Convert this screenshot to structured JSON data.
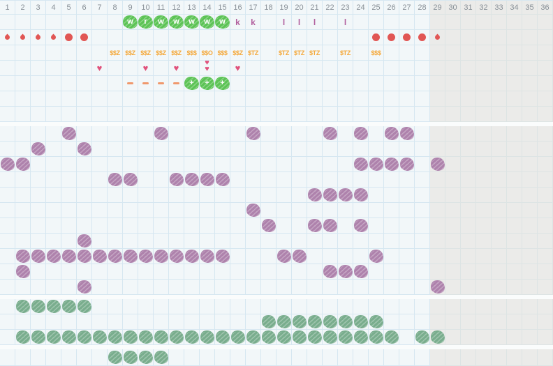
{
  "palette": {
    "bg_light": "#f2f7f9",
    "bg_dark": "#ebebe9",
    "grid_line": "#d6e7f1",
    "divider": "#fafcfc",
    "header_text": "#878f96",
    "badge_green": "#5cc355",
    "letter_mauve": "#b2609e",
    "money_orange": "#f4a93c",
    "drop_red": "#e15654",
    "heart_pink": "#e0517b",
    "dash_salmon": "#f0986c",
    "blob_purple": "#ae82ac",
    "blob_green": "#79ad8d"
  },
  "grid": {
    "columns": [
      "1",
      "2",
      "3",
      "4",
      "5",
      "6",
      "7",
      "8",
      "9",
      "10",
      "11",
      "12",
      "13",
      "14",
      "15",
      "16",
      "17",
      "18",
      "19",
      "20",
      "21",
      "22",
      "23",
      "24",
      "25",
      "26",
      "27",
      "28",
      "29",
      "30",
      "31",
      "32",
      "33",
      "34",
      "35",
      "36"
    ],
    "dark_from_column": 29
  },
  "sections": [
    {
      "name": "daily-symbols",
      "rows": [
        {
          "name": "badge-row",
          "items": [
            {
              "col": 9,
              "kind": "badge",
              "text": "w"
            },
            {
              "col": 10,
              "kind": "badge",
              "text": "r"
            },
            {
              "col": 11,
              "kind": "badge",
              "text": "w"
            },
            {
              "col": 12,
              "kind": "badge",
              "text": "w"
            },
            {
              "col": 13,
              "kind": "badge",
              "text": "w"
            },
            {
              "col": 14,
              "kind": "badge",
              "text": "w"
            },
            {
              "col": 15,
              "kind": "badge",
              "text": "w"
            },
            {
              "col": 16,
              "kind": "letter",
              "text": "k"
            },
            {
              "col": 17,
              "kind": "letter",
              "text": "k"
            },
            {
              "col": 19,
              "kind": "letter",
              "text": "l"
            },
            {
              "col": 20,
              "kind": "letter",
              "text": "l"
            },
            {
              "col": 21,
              "kind": "letter",
              "text": "l"
            },
            {
              "col": 23,
              "kind": "letter",
              "text": "l"
            }
          ]
        },
        {
          "name": "drop-row",
          "items": [
            {
              "col": 1,
              "kind": "drop"
            },
            {
              "col": 2,
              "kind": "drop"
            },
            {
              "col": 3,
              "kind": "drop"
            },
            {
              "col": 4,
              "kind": "drop"
            },
            {
              "col": 5,
              "kind": "dot"
            },
            {
              "col": 6,
              "kind": "dot"
            },
            {
              "col": 25,
              "kind": "dot"
            },
            {
              "col": 26,
              "kind": "dot"
            },
            {
              "col": 27,
              "kind": "dot"
            },
            {
              "col": 28,
              "kind": "dot"
            },
            {
              "col": 29,
              "kind": "drop"
            }
          ]
        },
        {
          "name": "money-row",
          "kind": "money",
          "items": [
            {
              "col": 8,
              "text": "$$Z"
            },
            {
              "col": 9,
              "text": "$$Z"
            },
            {
              "col": 10,
              "text": "$$Z"
            },
            {
              "col": 11,
              "text": "$$Z"
            },
            {
              "col": 12,
              "text": "$$Z"
            },
            {
              "col": 13,
              "text": "$$$"
            },
            {
              "col": 14,
              "text": "$$O"
            },
            {
              "col": 15,
              "text": "$$$"
            },
            {
              "col": 16,
              "text": "$$Z"
            },
            {
              "col": 17,
              "text": "$TZ"
            },
            {
              "col": 19,
              "text": "$TZ"
            },
            {
              "col": 20,
              "text": "$TZ"
            },
            {
              "col": 21,
              "text": "$TZ"
            },
            {
              "col": 23,
              "text": "$TZ"
            },
            {
              "col": 25,
              "text": "$$$"
            }
          ]
        },
        {
          "name": "heart-row",
          "items": [
            {
              "col": 7,
              "kind": "heart"
            },
            {
              "col": 10,
              "kind": "heart"
            },
            {
              "col": 12,
              "kind": "heart"
            },
            {
              "col": 14,
              "kind": "heart-double"
            },
            {
              "col": 16,
              "kind": "heart"
            }
          ]
        },
        {
          "name": "mark-row",
          "items": [
            {
              "col": 9,
              "kind": "dash"
            },
            {
              "col": 10,
              "kind": "dash"
            },
            {
              "col": 11,
              "kind": "dash"
            },
            {
              "col": 12,
              "kind": "dash"
            },
            {
              "col": 13,
              "kind": "badge",
              "text": "+"
            },
            {
              "col": 14,
              "kind": "badge",
              "text": "+"
            },
            {
              "col": 15,
              "kind": "badge",
              "text": "+"
            }
          ]
        },
        {
          "name": "empty-row",
          "items": []
        },
        {
          "name": "empty-row",
          "items": []
        }
      ]
    },
    {
      "name": "purple-activity",
      "kind": "blob-purple",
      "rows": [
        [
          5,
          11,
          17,
          22,
          24,
          26,
          27
        ],
        [
          3,
          6
        ],
        [
          1,
          2,
          24,
          25,
          26,
          27,
          29
        ],
        [
          8,
          9,
          12,
          13,
          14,
          15
        ],
        [
          21,
          22,
          23,
          24
        ],
        [
          17
        ],
        [
          18,
          21,
          22,
          24
        ],
        [
          6
        ],
        [
          2,
          3,
          4,
          5,
          6,
          7,
          8,
          9,
          10,
          11,
          12,
          13,
          14,
          15,
          19,
          20,
          25
        ],
        [
          2,
          22,
          23,
          24
        ],
        [
          6,
          29
        ]
      ]
    },
    {
      "name": "green-activity",
      "kind": "blob-green",
      "rows": [
        [
          2,
          3,
          4,
          5,
          6
        ],
        [
          18,
          19,
          20,
          21,
          22,
          23,
          24,
          25
        ],
        [
          2,
          3,
          4,
          5,
          6,
          7,
          8,
          9,
          10,
          11,
          12,
          13,
          14,
          15,
          16,
          17,
          18,
          19,
          20,
          21,
          22,
          23,
          24,
          25,
          26,
          28,
          29
        ]
      ]
    },
    {
      "name": "green-activity-2",
      "kind": "blob-green",
      "rows": [
        [
          8,
          9,
          10,
          11
        ]
      ]
    }
  ]
}
